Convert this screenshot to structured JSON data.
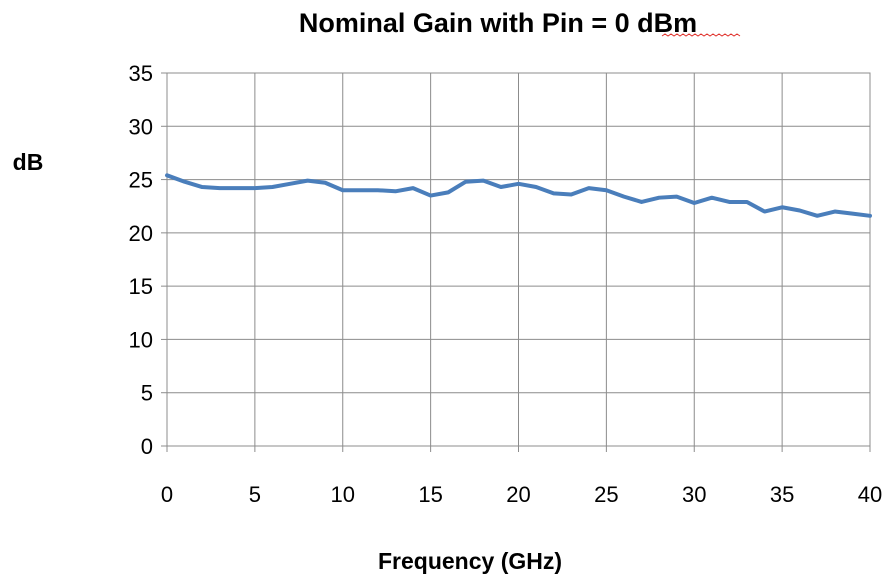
{
  "chart_data": {
    "type": "line",
    "title": "Nominal Gain with Pin = 0 dBm",
    "xlabel": "Frequency (GHz)",
    "ylabel": "dB",
    "xlim": [
      0,
      40
    ],
    "ylim": [
      0,
      35
    ],
    "xticks": [
      0,
      5,
      10,
      15,
      20,
      25,
      30,
      35,
      40
    ],
    "yticks": [
      0,
      5,
      10,
      15,
      20,
      25,
      30,
      35
    ],
    "grid": true,
    "legend": "none",
    "series": [
      {
        "color": "#4a7ebb",
        "x": [
          0,
          1,
          2,
          3,
          4,
          5,
          6,
          7,
          8,
          9,
          10,
          11,
          12,
          13,
          14,
          15,
          16,
          17,
          18,
          19,
          20,
          21,
          22,
          23,
          24,
          25,
          26,
          27,
          28,
          29,
          30,
          31,
          32,
          33,
          34,
          35,
          36,
          37,
          38,
          39,
          40
        ],
        "y": [
          25.4,
          24.8,
          24.3,
          24.2,
          24.2,
          24.2,
          24.3,
          24.6,
          24.9,
          24.7,
          24.0,
          24.0,
          24.0,
          23.9,
          24.2,
          23.5,
          23.8,
          24.8,
          24.9,
          24.3,
          24.6,
          24.3,
          23.7,
          23.6,
          24.2,
          24.0,
          23.4,
          22.9,
          23.3,
          23.4,
          22.8,
          23.3,
          22.9,
          22.9,
          22.0,
          22.4,
          22.1,
          21.6,
          22.0,
          21.8,
          21.6
        ]
      }
    ]
  }
}
